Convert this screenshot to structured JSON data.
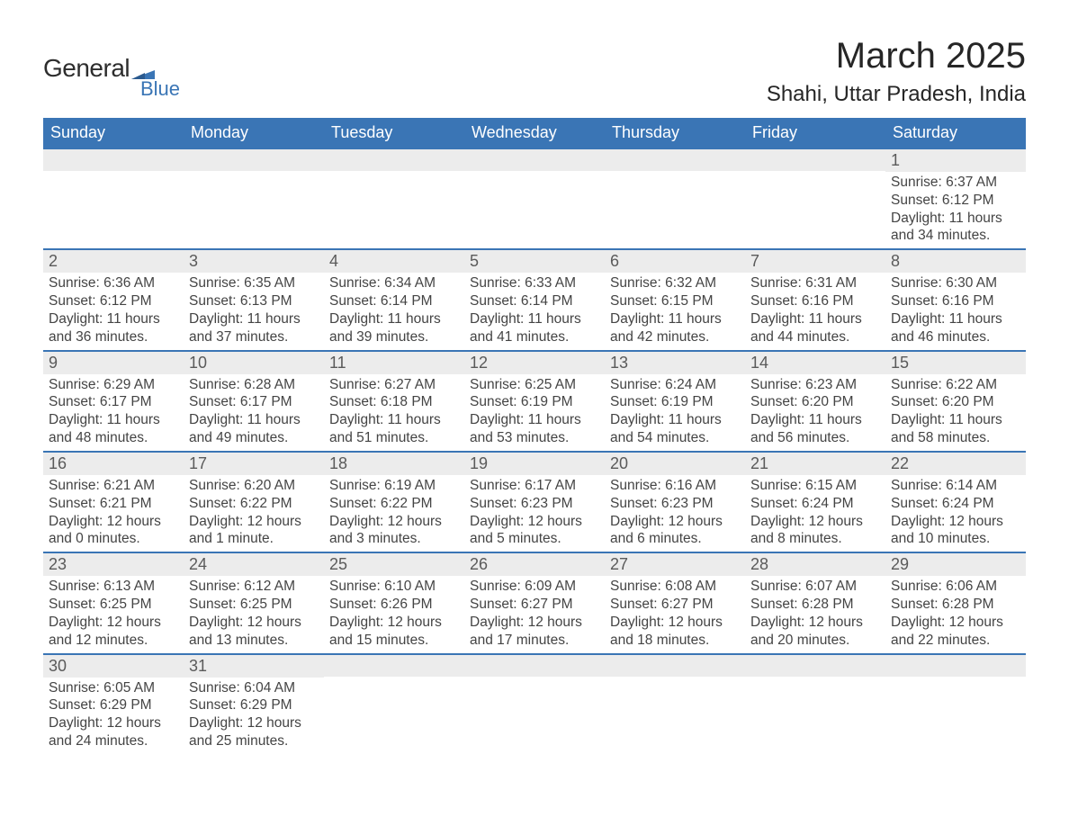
{
  "logo": {
    "general": "General",
    "blue": "Blue",
    "accent_color": "#3a75b5"
  },
  "title": "March 2025",
  "location": "Shahi, Uttar Pradesh, India",
  "colors": {
    "header_bg": "#3a75b5",
    "header_text": "#ffffff",
    "row_divider": "#3a75b5",
    "daynum_bg": "#ececec",
    "daynum_text": "#5a5a5a",
    "body_text": "#444444",
    "page_bg": "#ffffff"
  },
  "typography": {
    "title_fontsize": 40,
    "location_fontsize": 24,
    "header_fontsize": 18,
    "daynum_fontsize": 18,
    "body_fontsize": 15.5
  },
  "weekdays": [
    "Sunday",
    "Monday",
    "Tuesday",
    "Wednesday",
    "Thursday",
    "Friday",
    "Saturday"
  ],
  "weeks": [
    [
      {
        "day": "",
        "sunrise": "",
        "sunset": "",
        "daylight": ""
      },
      {
        "day": "",
        "sunrise": "",
        "sunset": "",
        "daylight": ""
      },
      {
        "day": "",
        "sunrise": "",
        "sunset": "",
        "daylight": ""
      },
      {
        "day": "",
        "sunrise": "",
        "sunset": "",
        "daylight": ""
      },
      {
        "day": "",
        "sunrise": "",
        "sunset": "",
        "daylight": ""
      },
      {
        "day": "",
        "sunrise": "",
        "sunset": "",
        "daylight": ""
      },
      {
        "day": "1",
        "sunrise": "Sunrise: 6:37 AM",
        "sunset": "Sunset: 6:12 PM",
        "daylight": "Daylight: 11 hours and 34 minutes."
      }
    ],
    [
      {
        "day": "2",
        "sunrise": "Sunrise: 6:36 AM",
        "sunset": "Sunset: 6:12 PM",
        "daylight": "Daylight: 11 hours and 36 minutes."
      },
      {
        "day": "3",
        "sunrise": "Sunrise: 6:35 AM",
        "sunset": "Sunset: 6:13 PM",
        "daylight": "Daylight: 11 hours and 37 minutes."
      },
      {
        "day": "4",
        "sunrise": "Sunrise: 6:34 AM",
        "sunset": "Sunset: 6:14 PM",
        "daylight": "Daylight: 11 hours and 39 minutes."
      },
      {
        "day": "5",
        "sunrise": "Sunrise: 6:33 AM",
        "sunset": "Sunset: 6:14 PM",
        "daylight": "Daylight: 11 hours and 41 minutes."
      },
      {
        "day": "6",
        "sunrise": "Sunrise: 6:32 AM",
        "sunset": "Sunset: 6:15 PM",
        "daylight": "Daylight: 11 hours and 42 minutes."
      },
      {
        "day": "7",
        "sunrise": "Sunrise: 6:31 AM",
        "sunset": "Sunset: 6:16 PM",
        "daylight": "Daylight: 11 hours and 44 minutes."
      },
      {
        "day": "8",
        "sunrise": "Sunrise: 6:30 AM",
        "sunset": "Sunset: 6:16 PM",
        "daylight": "Daylight: 11 hours and 46 minutes."
      }
    ],
    [
      {
        "day": "9",
        "sunrise": "Sunrise: 6:29 AM",
        "sunset": "Sunset: 6:17 PM",
        "daylight": "Daylight: 11 hours and 48 minutes."
      },
      {
        "day": "10",
        "sunrise": "Sunrise: 6:28 AM",
        "sunset": "Sunset: 6:17 PM",
        "daylight": "Daylight: 11 hours and 49 minutes."
      },
      {
        "day": "11",
        "sunrise": "Sunrise: 6:27 AM",
        "sunset": "Sunset: 6:18 PM",
        "daylight": "Daylight: 11 hours and 51 minutes."
      },
      {
        "day": "12",
        "sunrise": "Sunrise: 6:25 AM",
        "sunset": "Sunset: 6:19 PM",
        "daylight": "Daylight: 11 hours and 53 minutes."
      },
      {
        "day": "13",
        "sunrise": "Sunrise: 6:24 AM",
        "sunset": "Sunset: 6:19 PM",
        "daylight": "Daylight: 11 hours and 54 minutes."
      },
      {
        "day": "14",
        "sunrise": "Sunrise: 6:23 AM",
        "sunset": "Sunset: 6:20 PM",
        "daylight": "Daylight: 11 hours and 56 minutes."
      },
      {
        "day": "15",
        "sunrise": "Sunrise: 6:22 AM",
        "sunset": "Sunset: 6:20 PM",
        "daylight": "Daylight: 11 hours and 58 minutes."
      }
    ],
    [
      {
        "day": "16",
        "sunrise": "Sunrise: 6:21 AM",
        "sunset": "Sunset: 6:21 PM",
        "daylight": "Daylight: 12 hours and 0 minutes."
      },
      {
        "day": "17",
        "sunrise": "Sunrise: 6:20 AM",
        "sunset": "Sunset: 6:22 PM",
        "daylight": "Daylight: 12 hours and 1 minute."
      },
      {
        "day": "18",
        "sunrise": "Sunrise: 6:19 AM",
        "sunset": "Sunset: 6:22 PM",
        "daylight": "Daylight: 12 hours and 3 minutes."
      },
      {
        "day": "19",
        "sunrise": "Sunrise: 6:17 AM",
        "sunset": "Sunset: 6:23 PM",
        "daylight": "Daylight: 12 hours and 5 minutes."
      },
      {
        "day": "20",
        "sunrise": "Sunrise: 6:16 AM",
        "sunset": "Sunset: 6:23 PM",
        "daylight": "Daylight: 12 hours and 6 minutes."
      },
      {
        "day": "21",
        "sunrise": "Sunrise: 6:15 AM",
        "sunset": "Sunset: 6:24 PM",
        "daylight": "Daylight: 12 hours and 8 minutes."
      },
      {
        "day": "22",
        "sunrise": "Sunrise: 6:14 AM",
        "sunset": "Sunset: 6:24 PM",
        "daylight": "Daylight: 12 hours and 10 minutes."
      }
    ],
    [
      {
        "day": "23",
        "sunrise": "Sunrise: 6:13 AM",
        "sunset": "Sunset: 6:25 PM",
        "daylight": "Daylight: 12 hours and 12 minutes."
      },
      {
        "day": "24",
        "sunrise": "Sunrise: 6:12 AM",
        "sunset": "Sunset: 6:25 PM",
        "daylight": "Daylight: 12 hours and 13 minutes."
      },
      {
        "day": "25",
        "sunrise": "Sunrise: 6:10 AM",
        "sunset": "Sunset: 6:26 PM",
        "daylight": "Daylight: 12 hours and 15 minutes."
      },
      {
        "day": "26",
        "sunrise": "Sunrise: 6:09 AM",
        "sunset": "Sunset: 6:27 PM",
        "daylight": "Daylight: 12 hours and 17 minutes."
      },
      {
        "day": "27",
        "sunrise": "Sunrise: 6:08 AM",
        "sunset": "Sunset: 6:27 PM",
        "daylight": "Daylight: 12 hours and 18 minutes."
      },
      {
        "day": "28",
        "sunrise": "Sunrise: 6:07 AM",
        "sunset": "Sunset: 6:28 PM",
        "daylight": "Daylight: 12 hours and 20 minutes."
      },
      {
        "day": "29",
        "sunrise": "Sunrise: 6:06 AM",
        "sunset": "Sunset: 6:28 PM",
        "daylight": "Daylight: 12 hours and 22 minutes."
      }
    ],
    [
      {
        "day": "30",
        "sunrise": "Sunrise: 6:05 AM",
        "sunset": "Sunset: 6:29 PM",
        "daylight": "Daylight: 12 hours and 24 minutes."
      },
      {
        "day": "31",
        "sunrise": "Sunrise: 6:04 AM",
        "sunset": "Sunset: 6:29 PM",
        "daylight": "Daylight: 12 hours and 25 minutes."
      },
      {
        "day": "",
        "sunrise": "",
        "sunset": "",
        "daylight": ""
      },
      {
        "day": "",
        "sunrise": "",
        "sunset": "",
        "daylight": ""
      },
      {
        "day": "",
        "sunrise": "",
        "sunset": "",
        "daylight": ""
      },
      {
        "day": "",
        "sunrise": "",
        "sunset": "",
        "daylight": ""
      },
      {
        "day": "",
        "sunrise": "",
        "sunset": "",
        "daylight": ""
      }
    ]
  ]
}
